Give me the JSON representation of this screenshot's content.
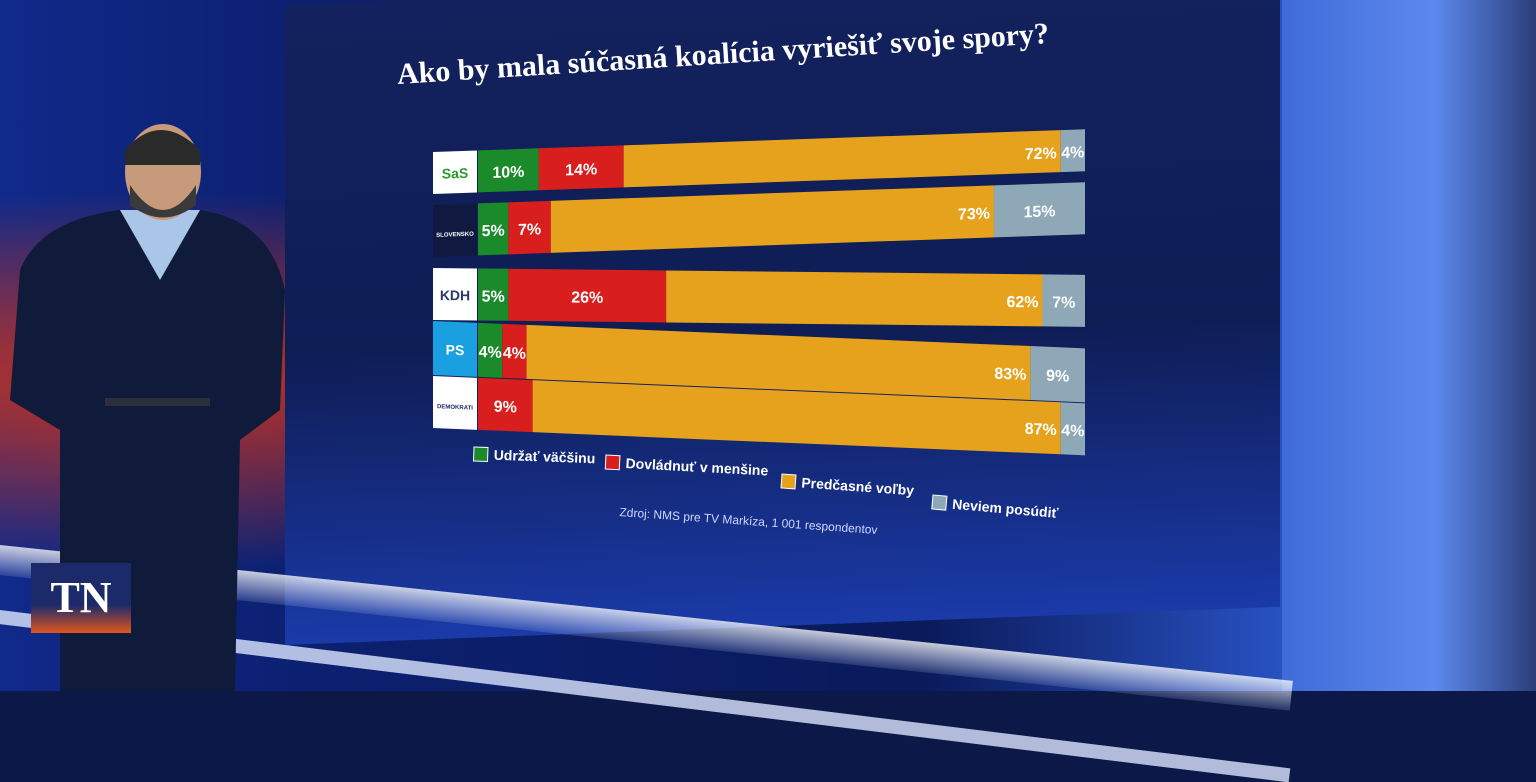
{
  "screen_title": "Ako by mala súčasná koalícia vyriešiť svoje spory?",
  "source_text": "Zdroj: NMS pre TV Markíza, 1 001 respondentov",
  "tn_logo_text": "TN",
  "colors": {
    "udrzat": "#1a8a2a",
    "dovladnut": "#d91e1e",
    "predcasne": "#e6a21c",
    "neviem": "#8fa8b8"
  },
  "party_logos": [
    {
      "text": "SaS",
      "icon": "sas-logo"
    },
    {
      "text": "SLOVENSKO",
      "icon": "slovensko-logo"
    },
    {
      "text": "KDH",
      "icon": "kdh-logo"
    },
    {
      "text": "PS",
      "icon": "ps-logo"
    },
    {
      "text": "DEMOKRATI",
      "icon": "demokrati-logo"
    }
  ],
  "chart_data": {
    "type": "bar",
    "orientation": "horizontal",
    "stacked": true,
    "title": "Ako by mala súčasná koalícia vyriešiť svoje spory?",
    "categories": [
      "SaS",
      "Slovensko",
      "KDH",
      "PS",
      "Demokrati"
    ],
    "series": [
      {
        "name": "Udržať väčšinu",
        "values": [
          10,
          5,
          5,
          4,
          0
        ],
        "labels": [
          "10%",
          "5%",
          "5%",
          "4%",
          ""
        ]
      },
      {
        "name": "Dovládnuť v menšine",
        "values": [
          14,
          7,
          26,
          4,
          9
        ],
        "labels": [
          "14%",
          "7%",
          "26%",
          "4%",
          "9%"
        ]
      },
      {
        "name": "Predčasné voľby",
        "values": [
          72,
          73,
          62,
          83,
          87
        ],
        "labels": [
          "72%",
          "73%",
          "62%",
          "83%",
          "87%"
        ]
      },
      {
        "name": "Neviem posúdiť",
        "values": [
          4,
          15,
          7,
          9,
          4
        ],
        "labels": [
          "4%",
          "15%",
          "7%",
          "9%",
          "4%"
        ]
      }
    ],
    "legend": "bottom",
    "grid": false
  }
}
